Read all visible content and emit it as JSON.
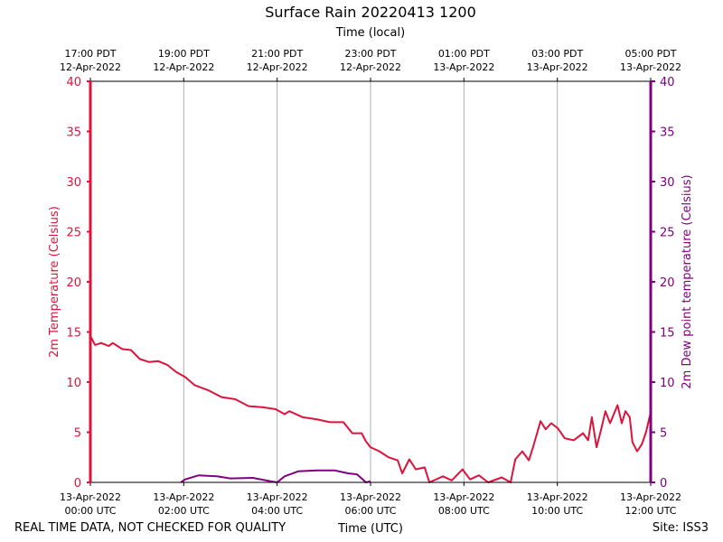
{
  "chart_data": {
    "type": "line",
    "title": "Surface Rain 20220413 1200",
    "top_xlabel": "Time (local)",
    "xlabel": "Time (UTC)",
    "ylabel_left": "2m Temperature (Celsius)",
    "ylabel_right": "2m Dew point temperature (Celsius)",
    "ylim": [
      0,
      40
    ],
    "xlim_hours_utc": [
      0,
      12
    ],
    "yticks": [
      0,
      5,
      10,
      15,
      20,
      25,
      30,
      35,
      40
    ],
    "grid": "vertical",
    "bottom_ticks": [
      {
        "h": 0,
        "l1": "13-Apr-2022",
        "l2": "00:00 UTC"
      },
      {
        "h": 2,
        "l1": "13-Apr-2022",
        "l2": "02:00 UTC"
      },
      {
        "h": 4,
        "l1": "13-Apr-2022",
        "l2": "04:00 UTC"
      },
      {
        "h": 6,
        "l1": "13-Apr-2022",
        "l2": "06:00 UTC"
      },
      {
        "h": 8,
        "l1": "13-Apr-2022",
        "l2": "08:00 UTC"
      },
      {
        "h": 10,
        "l1": "13-Apr-2022",
        "l2": "10:00 UTC"
      },
      {
        "h": 12,
        "l1": "13-Apr-2022",
        "l2": "12:00 UTC"
      }
    ],
    "top_ticks": [
      {
        "h": 0,
        "l1": "17:00 PDT",
        "l2": "12-Apr-2022"
      },
      {
        "h": 2,
        "l1": "19:00 PDT",
        "l2": "12-Apr-2022"
      },
      {
        "h": 4,
        "l1": "21:00 PDT",
        "l2": "12-Apr-2022"
      },
      {
        "h": 6,
        "l1": "23:00 PDT",
        "l2": "12-Apr-2022"
      },
      {
        "h": 8,
        "l1": "01:00 PDT",
        "l2": "13-Apr-2022"
      },
      {
        "h": 10,
        "l1": "03:00 PDT",
        "l2": "13-Apr-2022"
      },
      {
        "h": 12,
        "l1": "05:00 PDT",
        "l2": "13-Apr-2022"
      }
    ],
    "series": [
      {
        "name": "2m Temperature",
        "color": "#dc143c",
        "points": [
          [
            0,
            14.6
          ],
          [
            0.1,
            13.7
          ],
          [
            0.23,
            13.9
          ],
          [
            0.39,
            13.6
          ],
          [
            0.48,
            13.9
          ],
          [
            0.68,
            13.3
          ],
          [
            0.87,
            13.2
          ],
          [
            1.06,
            12.3
          ],
          [
            1.26,
            12.0
          ],
          [
            1.45,
            12.1
          ],
          [
            1.65,
            11.7
          ],
          [
            1.84,
            11.0
          ],
          [
            2.03,
            10.5
          ],
          [
            2.23,
            9.7
          ],
          [
            2.52,
            9.2
          ],
          [
            2.81,
            8.5
          ],
          [
            3.1,
            8.3
          ],
          [
            3.39,
            7.6
          ],
          [
            3.68,
            7.5
          ],
          [
            3.97,
            7.3
          ],
          [
            4.16,
            6.8
          ],
          [
            4.26,
            7.1
          ],
          [
            4.55,
            6.5
          ],
          [
            4.84,
            6.3
          ],
          [
            5.13,
            6.0
          ],
          [
            5.42,
            6.0
          ],
          [
            5.61,
            4.9
          ],
          [
            5.81,
            4.9
          ],
          [
            5.9,
            4.1
          ],
          [
            6.0,
            3.5
          ],
          [
            6.19,
            3.1
          ],
          [
            6.39,
            2.5
          ],
          [
            6.58,
            2.2
          ],
          [
            6.68,
            0.9
          ],
          [
            6.83,
            2.3
          ],
          [
            6.97,
            1.3
          ],
          [
            7.16,
            1.5
          ],
          [
            7.26,
            0
          ],
          [
            7.55,
            0.6
          ],
          [
            7.74,
            0.2
          ],
          [
            7.97,
            1.3
          ],
          [
            8.13,
            0.3
          ],
          [
            8.32,
            0.7
          ],
          [
            8.52,
            0
          ],
          [
            8.81,
            0.5
          ],
          [
            9.0,
            0
          ],
          [
            9.1,
            2.3
          ],
          [
            9.25,
            3.1
          ],
          [
            9.39,
            2.2
          ],
          [
            9.48,
            3.5
          ],
          [
            9.64,
            6.1
          ],
          [
            9.75,
            5.3
          ],
          [
            9.87,
            5.9
          ],
          [
            10.01,
            5.4
          ],
          [
            10.16,
            4.4
          ],
          [
            10.35,
            4.2
          ],
          [
            10.55,
            4.9
          ],
          [
            10.66,
            4.2
          ],
          [
            10.74,
            6.5
          ],
          [
            10.84,
            3.5
          ],
          [
            10.94,
            5.3
          ],
          [
            11.03,
            7.1
          ],
          [
            11.13,
            5.9
          ],
          [
            11.29,
            7.7
          ],
          [
            11.38,
            5.9
          ],
          [
            11.46,
            7.1
          ],
          [
            11.55,
            6.5
          ],
          [
            11.61,
            4.0
          ],
          [
            11.71,
            3.1
          ],
          [
            11.81,
            3.8
          ],
          [
            11.9,
            5.0
          ],
          [
            12.0,
            7.0
          ]
        ]
      },
      {
        "name": "2m Dew point temperature",
        "color": "#800080",
        "points": [
          [
            1.94,
            0
          ],
          [
            2.03,
            0.3
          ],
          [
            2.32,
            0.7
          ],
          [
            2.71,
            0.6
          ],
          [
            3.0,
            0.4
          ],
          [
            3.48,
            0.45
          ],
          [
            3.87,
            0.1
          ],
          [
            4.0,
            0
          ],
          [
            4.16,
            0.6
          ],
          [
            4.45,
            1.1
          ],
          [
            4.84,
            1.2
          ],
          [
            5.23,
            1.2
          ],
          [
            5.52,
            0.9
          ],
          [
            5.71,
            0.8
          ],
          [
            5.81,
            0.4
          ],
          [
            5.9,
            0
          ],
          [
            6.0,
            0.1
          ]
        ]
      }
    ]
  },
  "footer": {
    "left": "REAL TIME DATA, NOT CHECKED FOR QUALITY",
    "right": "Site: ISS3"
  }
}
